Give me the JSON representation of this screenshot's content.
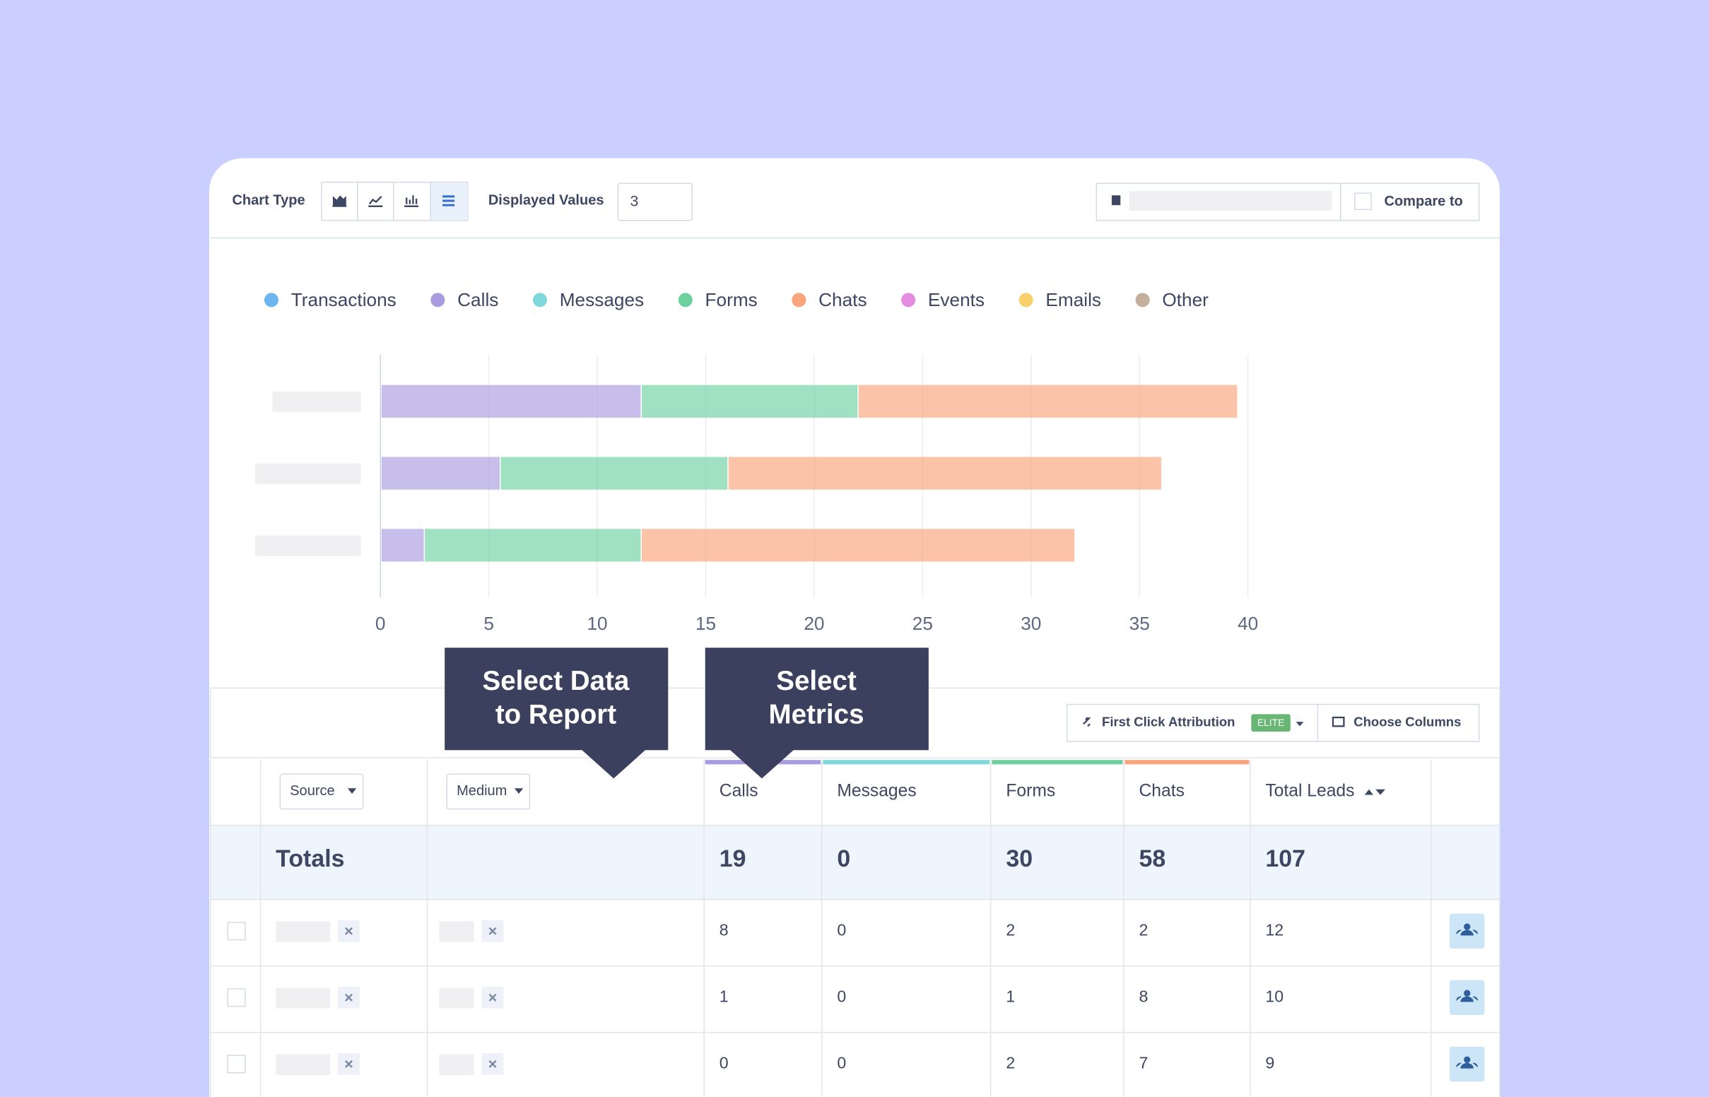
{
  "toolbar": {
    "chart_type_label": "Chart Type",
    "displayed_values_label": "Displayed Values",
    "displayed_values": "3",
    "compare_label": "Compare to"
  },
  "chart_data": {
    "type": "bar",
    "orientation": "horizontal",
    "stacked": true,
    "categories": [
      null,
      null,
      null
    ],
    "series": [
      {
        "name": "Transactions",
        "color": "#6bb6f0",
        "values": [
          0,
          0,
          0
        ]
      },
      {
        "name": "Calls",
        "color": "#a99be0",
        "values": [
          12,
          5.5,
          2
        ]
      },
      {
        "name": "Messages",
        "color": "#7ed8dc",
        "values": [
          0,
          0,
          0
        ]
      },
      {
        "name": "Forms",
        "color": "#6dd19f",
        "values": [
          10,
          10.5,
          10
        ]
      },
      {
        "name": "Chats",
        "color": "#f9a47a",
        "values": [
          17.5,
          20,
          20
        ]
      },
      {
        "name": "Events",
        "color": "#e58ce0",
        "values": [
          0,
          0,
          0
        ]
      },
      {
        "name": "Emails",
        "color": "#f9cf6e",
        "values": [
          0,
          0,
          0
        ]
      },
      {
        "name": "Other",
        "color": "#c4ae9c",
        "values": [
          0,
          0,
          0
        ]
      }
    ],
    "xlim": [
      0,
      40
    ],
    "xticks": [
      0,
      5,
      10,
      15,
      20,
      25,
      30,
      35,
      40
    ],
    "grid": true,
    "legend": "top"
  },
  "callouts": [
    {
      "lines": [
        "Select Data",
        "to Report"
      ]
    },
    {
      "lines": [
        "Select",
        "Metrics"
      ]
    }
  ],
  "table_toolbar": {
    "attribution": "First Click Attribution",
    "badge": "ELITE",
    "columns_button": "Choose Columns"
  },
  "table": {
    "columns": [
      "Source",
      "Medium",
      "Calls",
      "Messages",
      "Forms",
      "Chats",
      "Total Leads"
    ],
    "totals_label": "Totals",
    "totals": [
      19,
      0,
      30,
      58,
      107
    ],
    "rows": [
      [
        8,
        0,
        2,
        2,
        12
      ],
      [
        1,
        0,
        1,
        8,
        10
      ],
      [
        0,
        0,
        2,
        7,
        9
      ]
    ]
  }
}
